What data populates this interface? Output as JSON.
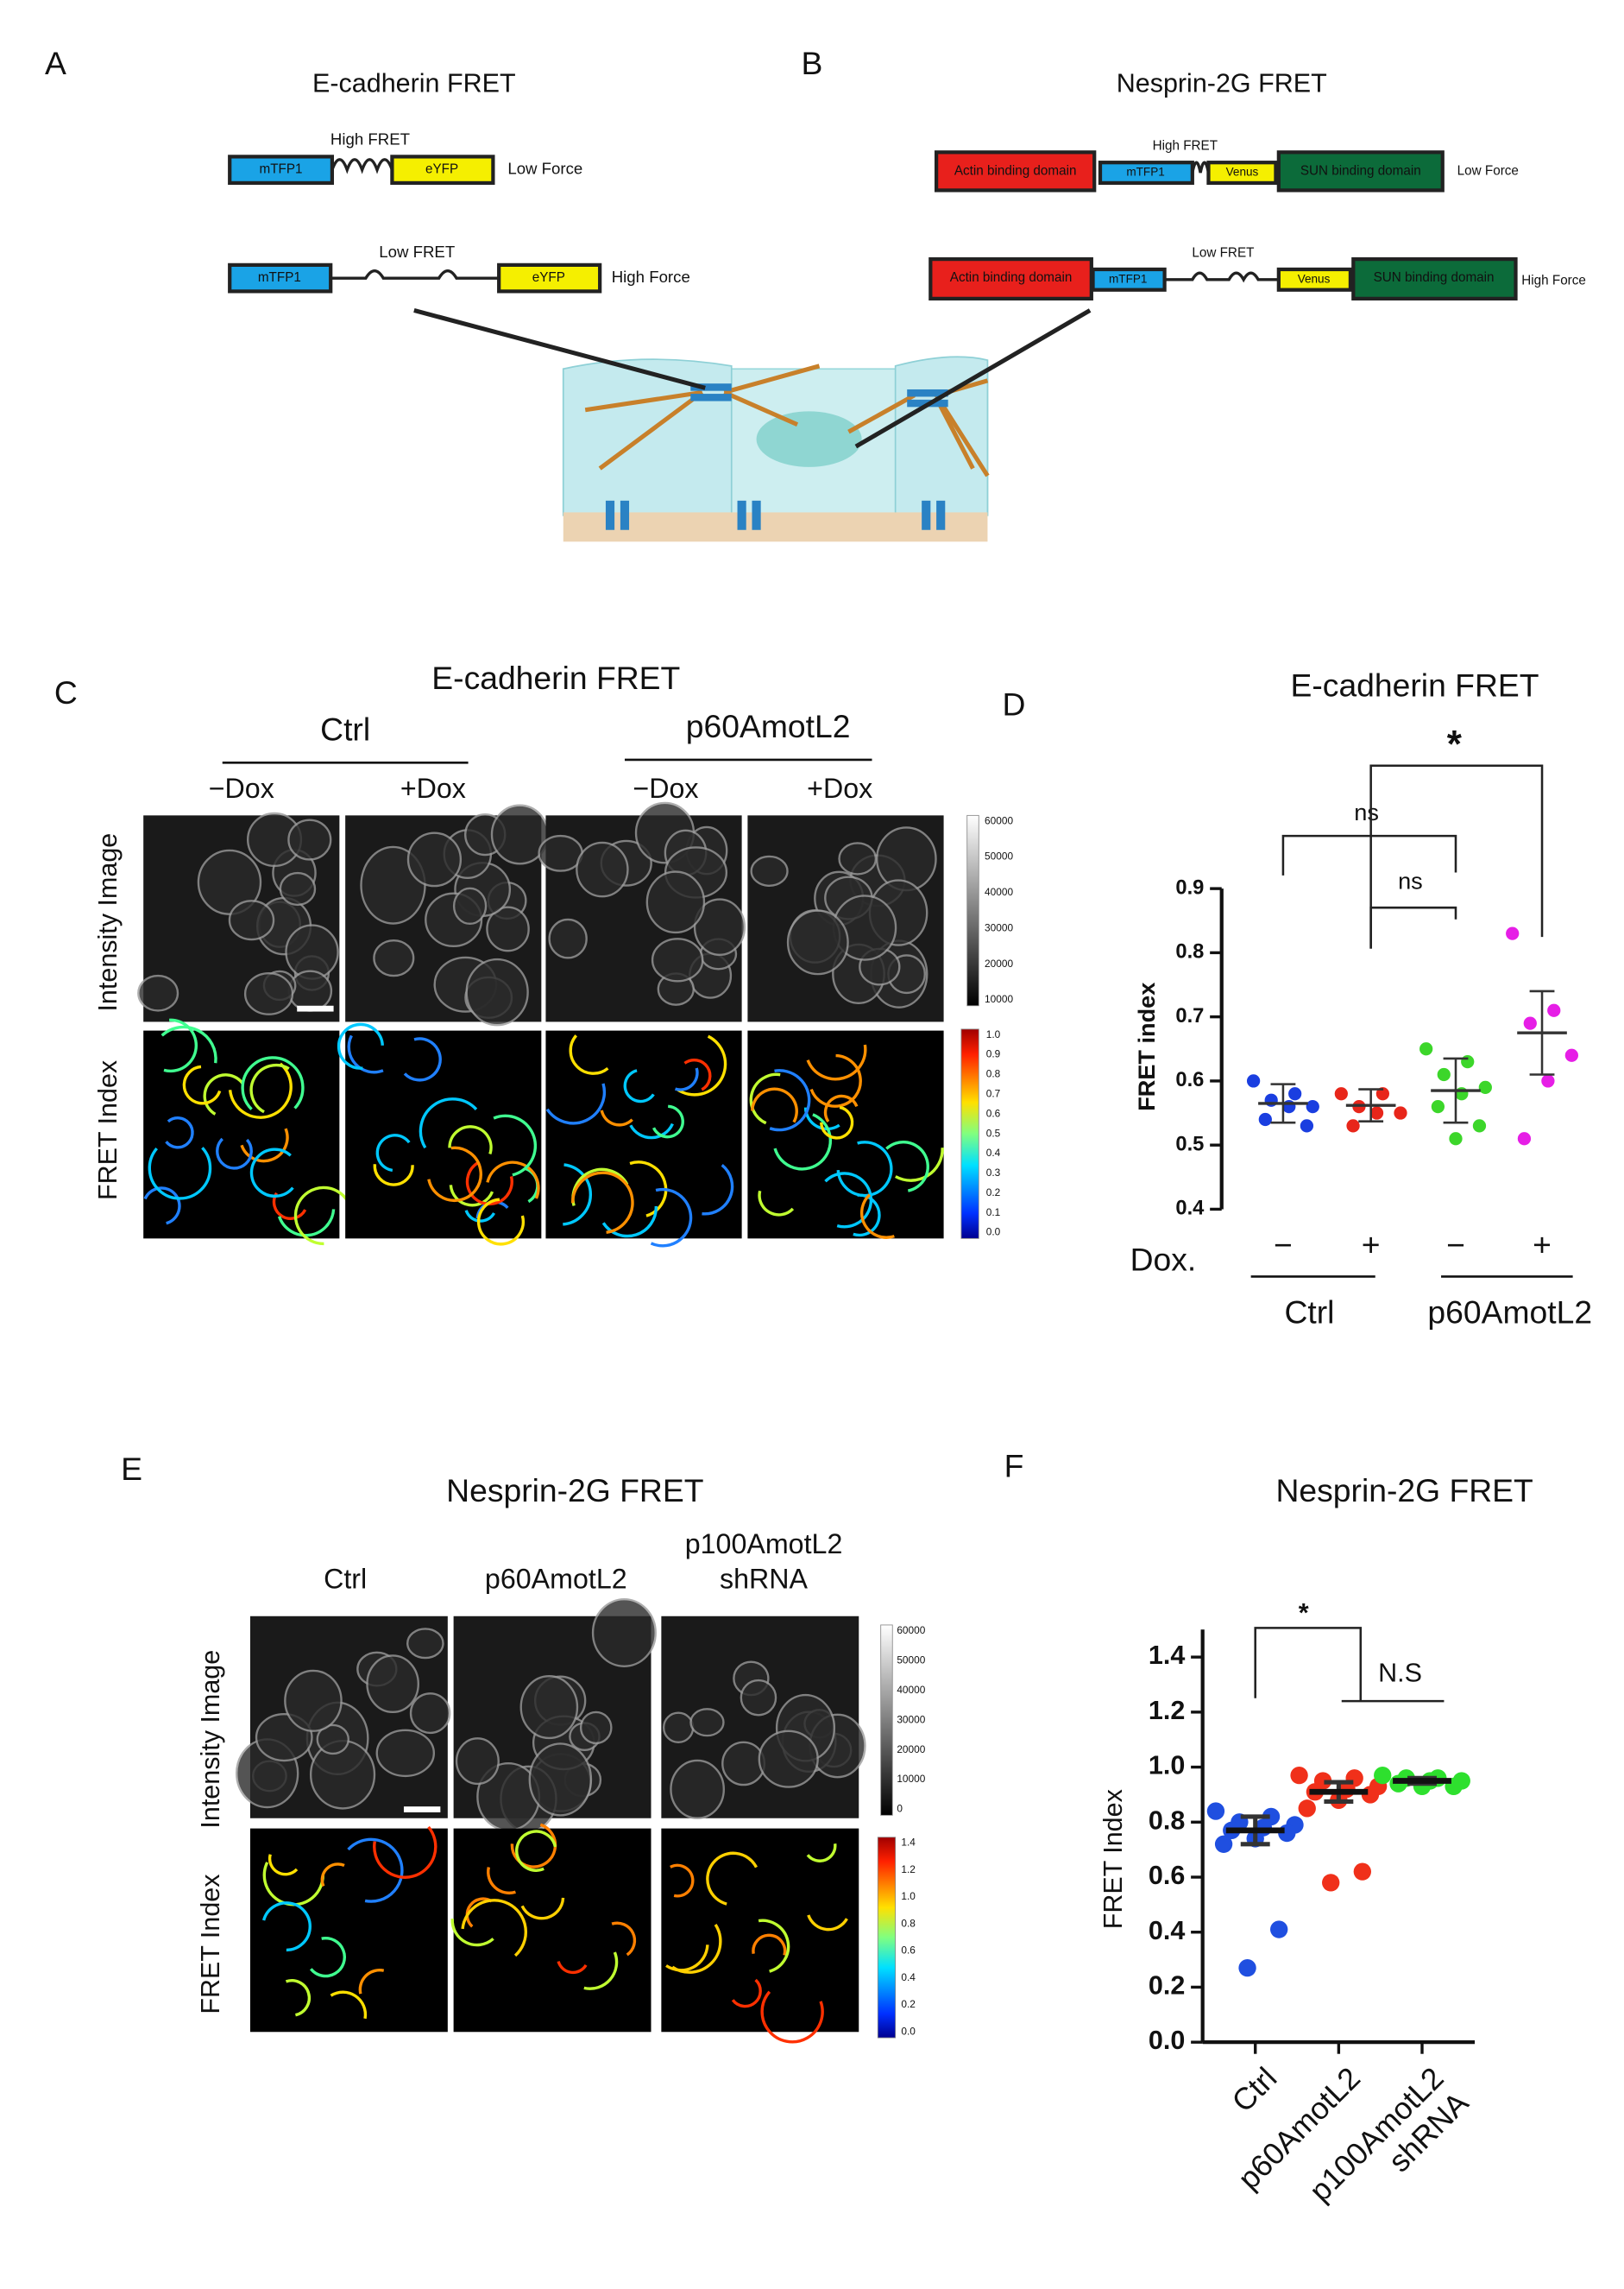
{
  "panel_labels": [
    "A",
    "B",
    "C",
    "D",
    "E",
    "F"
  ],
  "panel_a": {
    "title": "E-cadherin FRET",
    "low_force": {
      "fret": "High FRET",
      "donor": "mTFP1",
      "acceptor": "eYFP",
      "force": "Low Force"
    },
    "high_force": {
      "fret": "Low FRET",
      "donor": "mTFP1",
      "acceptor": "eYFP",
      "force": "High Force"
    }
  },
  "panel_b": {
    "title": "Nesprin-2G FRET",
    "low_force": {
      "actin": "Actin binding domain",
      "donor": "mTFP1",
      "fret": "High FRET",
      "acceptor": "Venus",
      "sun": "SUN binding domain",
      "force": "Low Force"
    },
    "high_force": {
      "actin": "Actin binding domain",
      "donor": "mTFP1",
      "fret": "Low FRET",
      "acceptor": "Venus",
      "sun": "SUN binding domain",
      "force": "High Force"
    }
  },
  "panel_c": {
    "title": "E-cadherin FRET",
    "groups": [
      "Ctrl",
      "p60AmotL2"
    ],
    "conditions": [
      "−Dox",
      "+Dox",
      "−Dox",
      "+Dox"
    ],
    "rows": [
      "Intensity Image",
      "FRET Index"
    ],
    "intensity_scale": [
      "60000",
      "50000",
      "40000",
      "30000",
      "20000",
      "10000"
    ],
    "fret_scale": [
      "1.0",
      "0.9",
      "0.8",
      "0.7",
      "0.6",
      "0.5",
      "0.4",
      "0.3",
      "0.2",
      "0.1",
      "0.0"
    ]
  },
  "panel_e": {
    "title": "Nesprin-2G FRET",
    "columns": [
      [
        "Ctrl"
      ],
      [
        "p60AmotL2"
      ],
      [
        "p100AmotL2",
        "shRNA"
      ]
    ],
    "rows": [
      "Intensity Image",
      "FRET Index"
    ],
    "intensity_scale": [
      "60000",
      "50000",
      "40000",
      "30000",
      "20000",
      "10000",
      "0"
    ],
    "fret_scale": [
      "1.4",
      "1.2",
      "1.0",
      "0.8",
      "0.6",
      "0.4",
      "0.2",
      "0.0"
    ]
  },
  "chart_data": [
    {
      "type": "dot",
      "title": "E-cadherin FRET",
      "ylabel": "FRET index",
      "xlabel": "Dox.",
      "categories": [
        "−",
        "+",
        "−",
        "+"
      ],
      "group_labels": [
        "Ctrl",
        "p60AmotL2"
      ],
      "colors": [
        "#1a3ee0",
        "#e8261a",
        "#3cd62a",
        "#e61ee6"
      ],
      "points": [
        [
          0.6,
          0.58,
          0.57,
          0.56,
          0.56,
          0.54,
          0.53
        ],
        [
          0.58,
          0.58,
          0.56,
          0.55,
          0.55,
          0.53
        ],
        [
          0.65,
          0.63,
          0.61,
          0.59,
          0.58,
          0.56,
          0.53,
          0.51
        ],
        [
          0.83,
          0.71,
          0.69,
          0.64,
          0.6,
          0.51
        ]
      ],
      "means": [
        0.565,
        0.562,
        0.585,
        0.675
      ],
      "errors": [
        0.03,
        0.025,
        0.05,
        0.065
      ],
      "ylim": [
        0.4,
        0.9
      ],
      "yticks": [
        0.4,
        0.5,
        0.6,
        0.7,
        0.8,
        0.9
      ],
      "annotations": [
        "ns",
        "ns",
        "*"
      ]
    },
    {
      "type": "dot",
      "title": "Nesprin-2G FRET",
      "ylabel": "FRET Index",
      "categories": [
        [
          "Ctrl"
        ],
        [
          "p60AmotL2"
        ],
        [
          "p100AmotL2",
          "shRNA"
        ]
      ],
      "colors": [
        "#1f4fe0",
        "#f0301a",
        "#2ee02e"
      ],
      "points": [
        [
          0.84,
          0.82,
          0.8,
          0.79,
          0.78,
          0.77,
          0.76,
          0.74,
          0.72,
          0.41,
          0.27
        ],
        [
          0.97,
          0.96,
          0.95,
          0.93,
          0.92,
          0.91,
          0.9,
          0.88,
          0.85,
          0.62,
          0.58
        ],
        [
          0.97,
          0.96,
          0.96,
          0.95,
          0.95,
          0.94,
          0.93,
          0.93
        ]
      ],
      "means": [
        0.77,
        0.91,
        0.95
      ],
      "errors": [
        0.05,
        0.035,
        0.01
      ],
      "ylim": [
        0,
        1.5
      ],
      "yticks": [
        {
          "value": 0,
          "label": "0.0"
        },
        0.2,
        0.4,
        0.6,
        0.8,
        {
          "value": 1,
          "label": "1.0"
        },
        1.2,
        1.4
      ],
      "annotations": [
        "*",
        "N.S"
      ]
    }
  ]
}
